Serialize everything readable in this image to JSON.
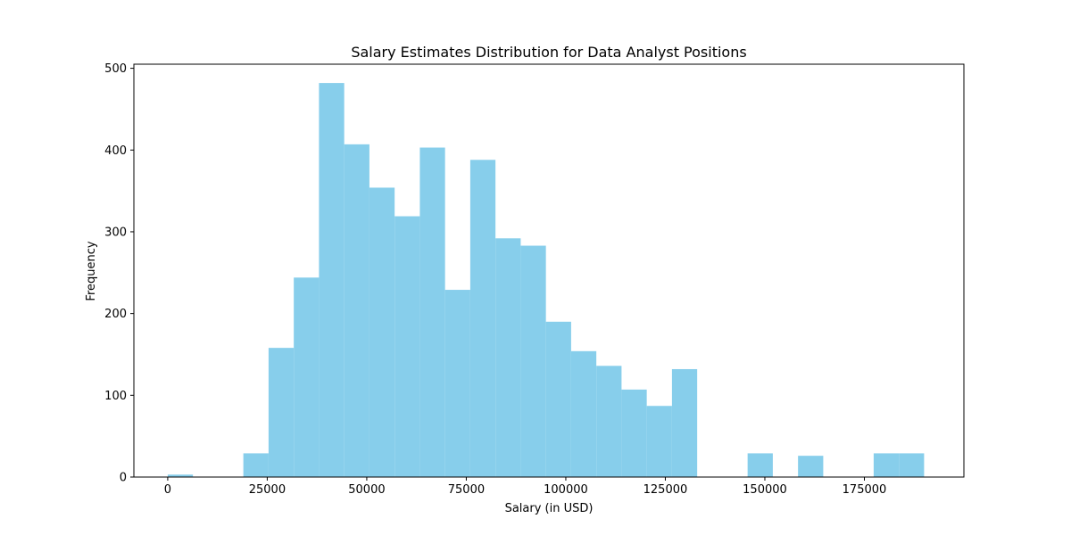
{
  "chart_data": {
    "type": "bar",
    "title": "Salary Estimates Distribution for Data Analyst Positions",
    "xlabel": "Salary (in USD)",
    "ylabel": "Frequency",
    "xlim": [
      -8500,
      200000
    ],
    "ylim": [
      0,
      505
    ],
    "xticks": [
      0,
      25000,
      50000,
      75000,
      100000,
      125000,
      150000,
      175000
    ],
    "xtick_labels": [
      "0",
      "25000",
      "50000",
      "75000",
      "100000",
      "125000",
      "150000",
      "175000"
    ],
    "yticks": [
      0,
      100,
      200,
      300,
      400,
      500
    ],
    "ytick_labels": [
      "0",
      "100",
      "200",
      "300",
      "400",
      "500"
    ],
    "grid": false,
    "bar_color": "#87CEEB",
    "bins": [
      {
        "x0": 0,
        "x1": 6333,
        "value": 3
      },
      {
        "x0": 6333,
        "x1": 12667,
        "value": 0
      },
      {
        "x0": 12667,
        "x1": 19000,
        "value": 0
      },
      {
        "x0": 19000,
        "x1": 25333,
        "value": 29
      },
      {
        "x0": 25333,
        "x1": 31667,
        "value": 158
      },
      {
        "x0": 31667,
        "x1": 38000,
        "value": 244
      },
      {
        "x0": 38000,
        "x1": 44333,
        "value": 482
      },
      {
        "x0": 44333,
        "x1": 50667,
        "value": 407
      },
      {
        "x0": 50667,
        "x1": 57000,
        "value": 354
      },
      {
        "x0": 57000,
        "x1": 63333,
        "value": 319
      },
      {
        "x0": 63333,
        "x1": 69667,
        "value": 403
      },
      {
        "x0": 69667,
        "x1": 76000,
        "value": 229
      },
      {
        "x0": 76000,
        "x1": 82333,
        "value": 388
      },
      {
        "x0": 82333,
        "x1": 88667,
        "value": 292
      },
      {
        "x0": 88667,
        "x1": 95000,
        "value": 283
      },
      {
        "x0": 95000,
        "x1": 101333,
        "value": 190
      },
      {
        "x0": 101333,
        "x1": 107667,
        "value": 154
      },
      {
        "x0": 107667,
        "x1": 114000,
        "value": 136
      },
      {
        "x0": 114000,
        "x1": 120333,
        "value": 107
      },
      {
        "x0": 120333,
        "x1": 126667,
        "value": 87
      },
      {
        "x0": 126667,
        "x1": 133000,
        "value": 132
      },
      {
        "x0": 133000,
        "x1": 139333,
        "value": 0
      },
      {
        "x0": 139333,
        "x1": 145667,
        "value": 0
      },
      {
        "x0": 145667,
        "x1": 152000,
        "value": 29
      },
      {
        "x0": 152000,
        "x1": 158333,
        "value": 0
      },
      {
        "x0": 158333,
        "x1": 164667,
        "value": 26
      },
      {
        "x0": 164667,
        "x1": 171000,
        "value": 0
      },
      {
        "x0": 171000,
        "x1": 177333,
        "value": 0
      },
      {
        "x0": 177333,
        "x1": 183667,
        "value": 29
      },
      {
        "x0": 183667,
        "x1": 190000,
        "value": 29
      }
    ]
  }
}
